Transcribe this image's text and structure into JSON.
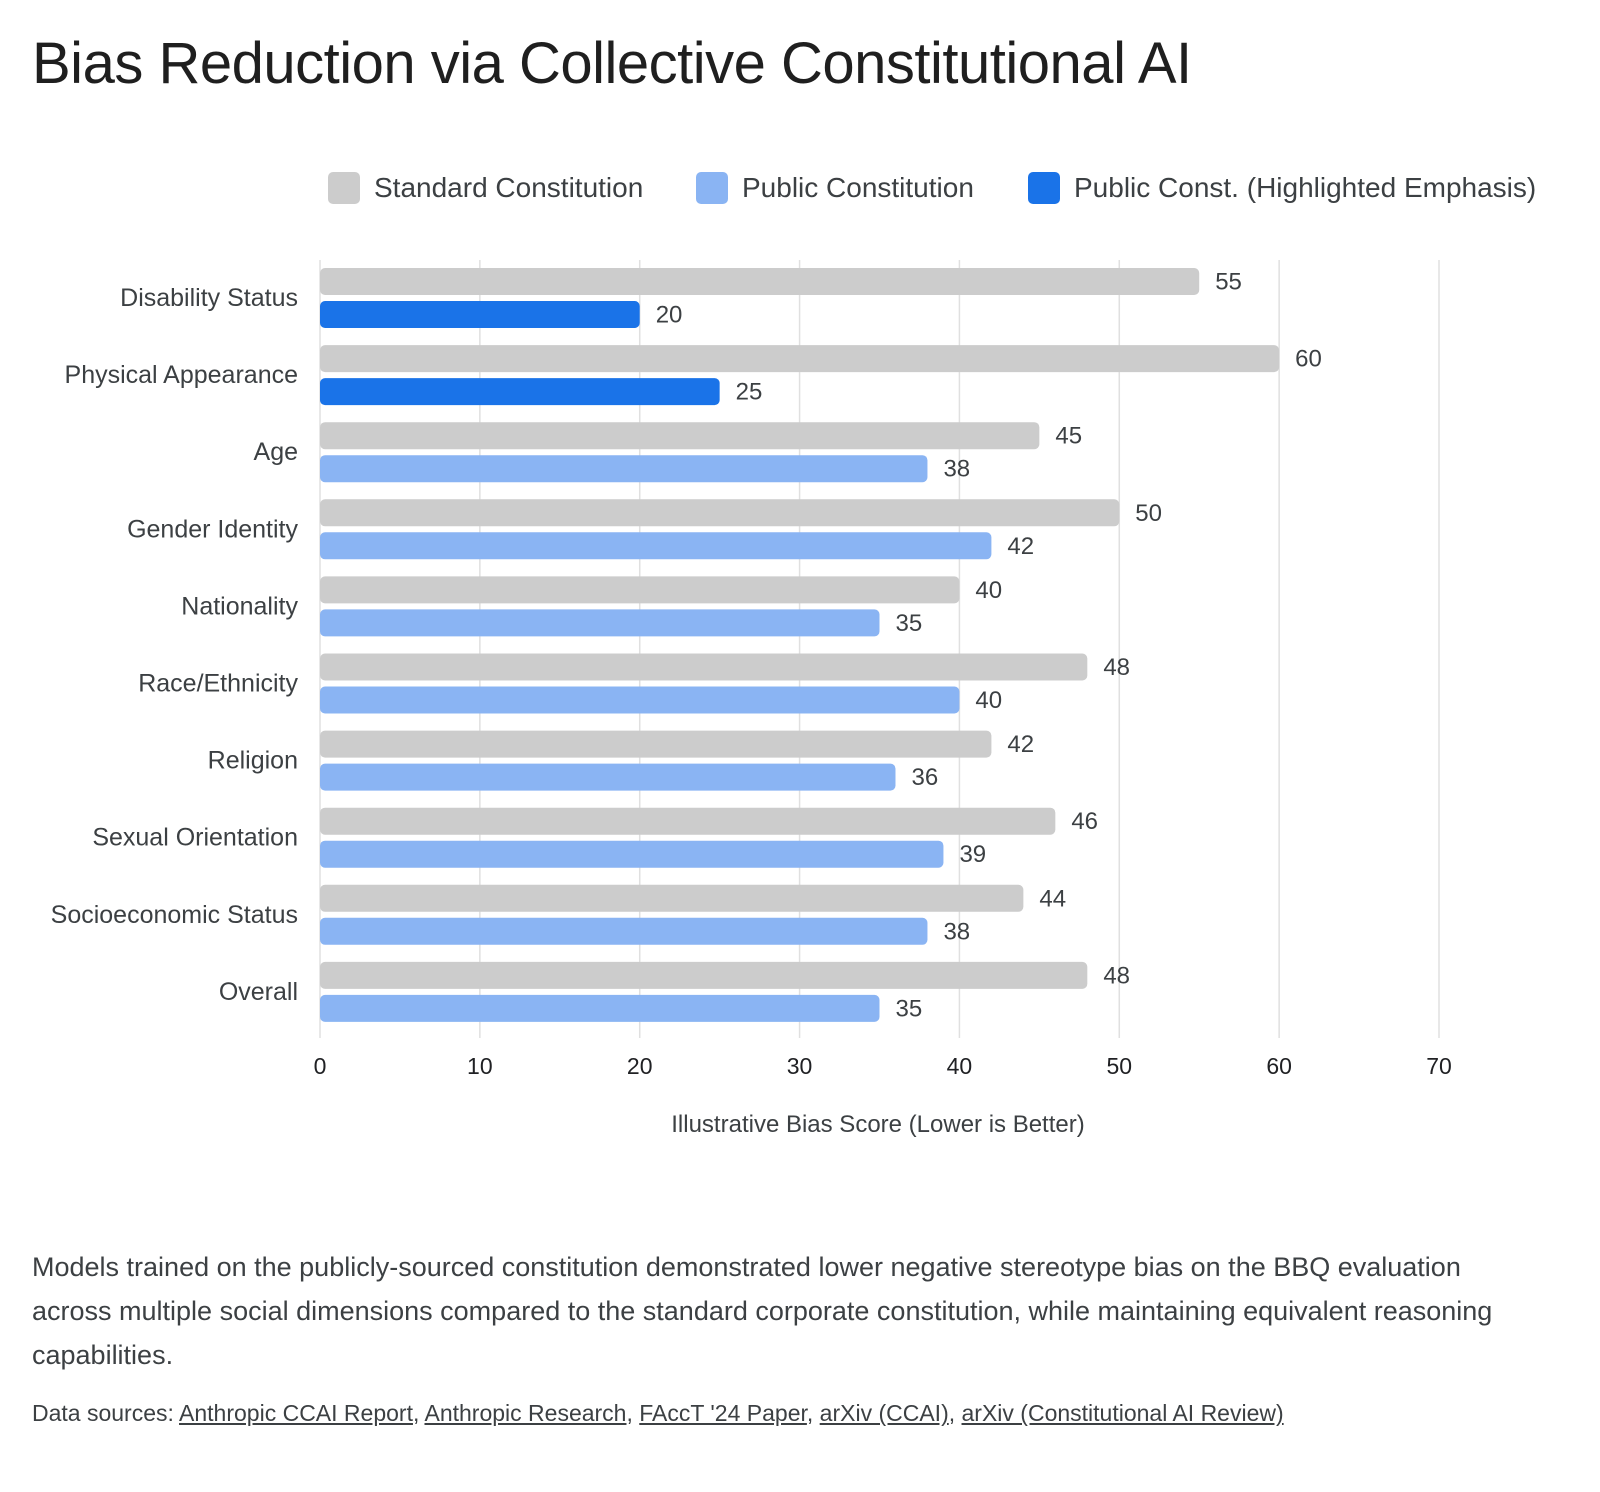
{
  "title": "Bias Reduction via Collective Constitutional AI",
  "colors": {
    "standard": "#cccccc",
    "public": "#8ab4f3",
    "highlight": "#1a73e8",
    "grid": "#e0e0e0",
    "text": "#3c4043"
  },
  "chart_data": {
    "type": "bar",
    "orientation": "horizontal",
    "categories": [
      "Disability Status",
      "Physical Appearance",
      "Age",
      "Gender Identity",
      "Nationality",
      "Race/Ethnicity",
      "Religion",
      "Sexual Orientation",
      "Socioeconomic Status",
      "Overall"
    ],
    "series": [
      {
        "name": "Standard Constitution",
        "values": [
          55,
          60,
          45,
          50,
          40,
          48,
          42,
          46,
          44,
          48
        ]
      },
      {
        "name": "Public Constitution",
        "values": [
          20,
          25,
          38,
          42,
          35,
          40,
          36,
          39,
          38,
          35
        ],
        "highlighted_categories": [
          "Disability Status",
          "Physical Appearance"
        ]
      }
    ],
    "legend": [
      "Standard Constitution",
      "Public Constitution",
      "Public Const. (Highlighted Emphasis)"
    ],
    "legend_position": "top",
    "xlabel": "Illustrative Bias Score (Lower is Better)",
    "xlim": [
      0,
      70
    ],
    "xticks": [
      0,
      10,
      20,
      30,
      40,
      50,
      60,
      70
    ],
    "grid": true
  },
  "description": "Models trained on the publicly-sourced constitution demonstrated lower negative stereotype bias on the BBQ evaluation across multiple social dimensions compared to the standard corporate constitution, while maintaining equivalent reasoning capabilities.",
  "sources": {
    "prefix": "Data sources:",
    "links": [
      "Anthropic CCAI Report",
      "Anthropic Research",
      "FAccT '24 Paper",
      "arXiv (CCAI)",
      "arXiv (Constitutional AI Review)"
    ]
  }
}
